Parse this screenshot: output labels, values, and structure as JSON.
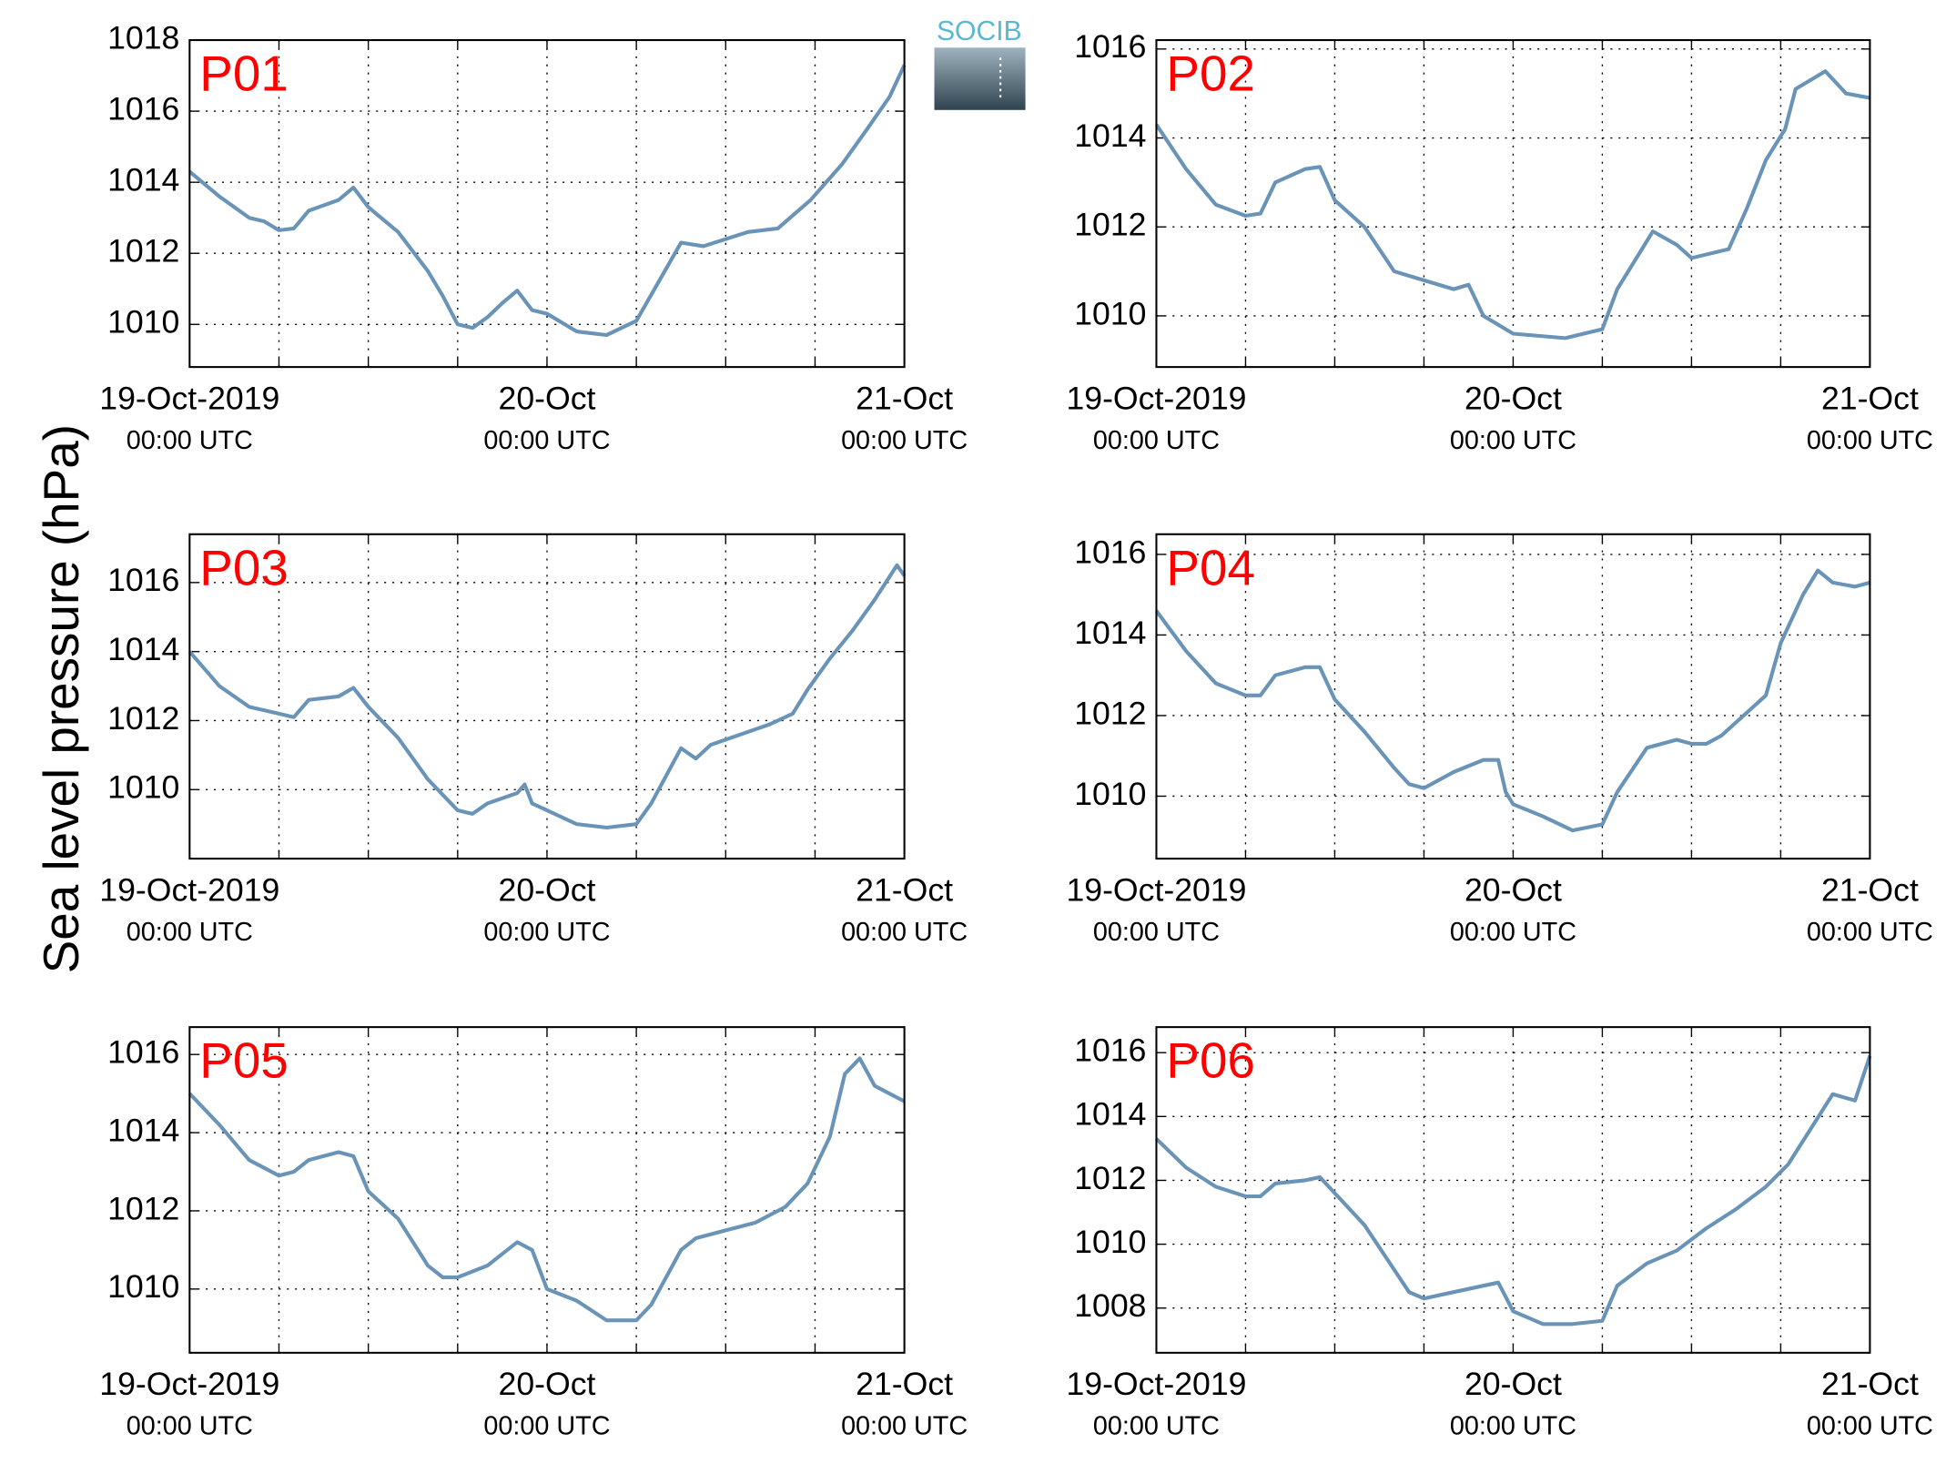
{
  "ylabel": "Sea level pressure (hPa)",
  "logo": "SOCIB",
  "chart_data": [
    {
      "type": "line",
      "title": "P01",
      "title_color": "#ff0000",
      "color": "#6a93b8",
      "grid": true,
      "xlim": [
        0,
        48
      ],
      "ylim": [
        1008.8,
        1018
      ],
      "yticks": [
        1010,
        1012,
        1014,
        1016,
        1018
      ],
      "xticks": [
        {
          "value": 0,
          "label": [
            "19-Oct-2019",
            "00:00 UTC"
          ]
        },
        {
          "value": 6,
          "label": null
        },
        {
          "value": 12,
          "label": null
        },
        {
          "value": 18,
          "label": null
        },
        {
          "value": 24,
          "label": [
            "20-Oct",
            "00:00 UTC"
          ]
        },
        {
          "value": 30,
          "label": null
        },
        {
          "value": 36,
          "label": null
        },
        {
          "value": 42,
          "label": null
        },
        {
          "value": 48,
          "label": [
            "21-Oct",
            "00:00 UTC"
          ]
        }
      ],
      "x": [
        0,
        2,
        4,
        5,
        6,
        7,
        8,
        10,
        11,
        12,
        14,
        16,
        17,
        18,
        19,
        20,
        21,
        22,
        23,
        24,
        26,
        28,
        30,
        31.5,
        33,
        34.5,
        37.5,
        39.5,
        41.7,
        43.8,
        45.5,
        47,
        48
      ],
      "values": [
        1014.3,
        1013.6,
        1013.0,
        1012.9,
        1012.65,
        1012.7,
        1013.2,
        1013.5,
        1013.85,
        1013.3,
        1012.6,
        1011.5,
        1010.8,
        1010.0,
        1009.9,
        1010.2,
        1010.6,
        1010.95,
        1010.4,
        1010.3,
        1009.8,
        1009.7,
        1010.1,
        1011.2,
        1012.3,
        1012.2,
        1012.6,
        1012.7,
        1013.5,
        1014.5,
        1015.5,
        1016.4,
        1017.3
      ]
    },
    {
      "type": "line",
      "title": "P02",
      "title_color": "#ff0000",
      "color": "#6a93b8",
      "grid": true,
      "xlim": [
        0,
        48
      ],
      "ylim": [
        1008.85,
        1016.2
      ],
      "yticks": [
        1010,
        1012,
        1014,
        1016
      ],
      "xticks": [
        {
          "value": 0,
          "label": [
            "19-Oct-2019",
            "00:00 UTC"
          ]
        },
        {
          "value": 6,
          "label": null
        },
        {
          "value": 12,
          "label": null
        },
        {
          "value": 18,
          "label": null
        },
        {
          "value": 24,
          "label": [
            "20-Oct",
            "00:00 UTC"
          ]
        },
        {
          "value": 30,
          "label": null
        },
        {
          "value": 36,
          "label": null
        },
        {
          "value": 42,
          "label": null
        },
        {
          "value": 48,
          "label": [
            "21-Oct",
            "00:00 UTC"
          ]
        }
      ],
      "x": [
        0,
        2,
        4,
        6,
        7,
        8,
        10,
        11,
        12,
        14,
        16,
        18,
        20,
        21,
        22,
        24,
        27.5,
        30,
        31,
        33.4,
        35,
        36,
        38.5,
        39.7,
        41,
        42.3,
        43,
        45,
        46.4,
        48
      ],
      "values": [
        1014.3,
        1013.3,
        1012.5,
        1012.25,
        1012.3,
        1013.0,
        1013.3,
        1013.35,
        1012.6,
        1012.0,
        1011.0,
        1010.8,
        1010.6,
        1010.7,
        1010.0,
        1009.6,
        1009.5,
        1009.7,
        1010.6,
        1011.9,
        1011.6,
        1011.3,
        1011.5,
        1012.4,
        1013.5,
        1014.2,
        1015.1,
        1015.5,
        1015.0,
        1014.9
      ]
    },
    {
      "type": "line",
      "title": "P03",
      "title_color": "#ff0000",
      "color": "#6a93b8",
      "grid": true,
      "xlim": [
        0,
        48
      ],
      "ylim": [
        1008,
        1017.4
      ],
      "yticks": [
        1010,
        1012,
        1014,
        1016
      ],
      "xticks": [
        {
          "value": 0,
          "label": [
            "19-Oct-2019",
            "00:00 UTC"
          ]
        },
        {
          "value": 6,
          "label": null
        },
        {
          "value": 12,
          "label": null
        },
        {
          "value": 18,
          "label": null
        },
        {
          "value": 24,
          "label": [
            "20-Oct",
            "00:00 UTC"
          ]
        },
        {
          "value": 30,
          "label": null
        },
        {
          "value": 36,
          "label": null
        },
        {
          "value": 42,
          "label": null
        },
        {
          "value": 48,
          "label": [
            "21-Oct",
            "00:00 UTC"
          ]
        }
      ],
      "x": [
        0,
        2,
        4,
        6,
        7,
        8,
        10,
        11,
        12,
        14,
        16,
        18,
        19,
        20,
        22,
        22.5,
        23,
        24,
        26,
        28,
        30,
        31,
        32,
        33,
        34,
        35,
        37,
        39,
        40.5,
        41.5,
        43,
        44.5,
        46,
        47.5,
        48
      ],
      "values": [
        1014.0,
        1013.0,
        1012.4,
        1012.2,
        1012.1,
        1012.6,
        1012.7,
        1012.95,
        1012.4,
        1011.5,
        1010.3,
        1009.4,
        1009.3,
        1009.6,
        1009.9,
        1010.15,
        1009.6,
        1009.4,
        1009.0,
        1008.9,
        1009.0,
        1009.6,
        1010.4,
        1011.2,
        1010.9,
        1011.3,
        1011.6,
        1011.9,
        1012.2,
        1012.9,
        1013.8,
        1014.6,
        1015.5,
        1016.5,
        1016.2
      ]
    },
    {
      "type": "line",
      "title": "P04",
      "title_color": "#ff0000",
      "color": "#6a93b8",
      "grid": true,
      "xlim": [
        0,
        48
      ],
      "ylim": [
        1008.45,
        1016.5
      ],
      "yticks": [
        1010,
        1012,
        1014,
        1016
      ],
      "xticks": [
        {
          "value": 0,
          "label": [
            "19-Oct-2019",
            "00:00 UTC"
          ]
        },
        {
          "value": 6,
          "label": null
        },
        {
          "value": 12,
          "label": null
        },
        {
          "value": 18,
          "label": null
        },
        {
          "value": 24,
          "label": [
            "20-Oct",
            "00:00 UTC"
          ]
        },
        {
          "value": 30,
          "label": null
        },
        {
          "value": 36,
          "label": null
        },
        {
          "value": 42,
          "label": null
        },
        {
          "value": 48,
          "label": [
            "21-Oct",
            "00:00 UTC"
          ]
        }
      ],
      "x": [
        0,
        2,
        4,
        6,
        7,
        8,
        10,
        11,
        12,
        14,
        16,
        17,
        18,
        20,
        22,
        23,
        23.5,
        24,
        26,
        28,
        30,
        31,
        33,
        35,
        36,
        37,
        38,
        39.5,
        41,
        42,
        43.5,
        44.5,
        45.5,
        47,
        48
      ],
      "values": [
        1014.6,
        1013.6,
        1012.8,
        1012.5,
        1012.5,
        1013.0,
        1013.2,
        1013.2,
        1012.4,
        1011.6,
        1010.7,
        1010.3,
        1010.2,
        1010.6,
        1010.9,
        1010.9,
        1010.1,
        1009.8,
        1009.5,
        1009.15,
        1009.3,
        1010.1,
        1011.2,
        1011.4,
        1011.3,
        1011.3,
        1011.5,
        1012.0,
        1012.5,
        1013.8,
        1015.0,
        1015.6,
        1015.3,
        1015.2,
        1015.3
      ]
    },
    {
      "type": "line",
      "title": "P05",
      "title_color": "#ff0000",
      "color": "#6a93b8",
      "grid": true,
      "xlim": [
        0,
        48
      ],
      "ylim": [
        1008.37,
        1016.7
      ],
      "yticks": [
        1010,
        1012,
        1014,
        1016
      ],
      "xticks": [
        {
          "value": 0,
          "label": [
            "19-Oct-2019",
            "00:00 UTC"
          ]
        },
        {
          "value": 6,
          "label": null
        },
        {
          "value": 12,
          "label": null
        },
        {
          "value": 18,
          "label": null
        },
        {
          "value": 24,
          "label": [
            "20-Oct",
            "00:00 UTC"
          ]
        },
        {
          "value": 30,
          "label": null
        },
        {
          "value": 36,
          "label": null
        },
        {
          "value": 42,
          "label": null
        },
        {
          "value": 48,
          "label": [
            "21-Oct",
            "00:00 UTC"
          ]
        }
      ],
      "x": [
        0,
        2,
        4,
        6,
        7,
        8,
        10,
        11,
        12,
        14,
        16,
        17,
        18,
        20,
        22,
        23,
        24,
        26,
        28,
        30,
        31,
        33,
        34,
        36,
        38,
        40,
        41.5,
        43,
        44,
        45,
        46,
        47,
        48
      ],
      "values": [
        1015.0,
        1014.2,
        1013.3,
        1012.9,
        1013.0,
        1013.3,
        1013.5,
        1013.4,
        1012.5,
        1011.8,
        1010.6,
        1010.3,
        1010.3,
        1010.6,
        1011.2,
        1011.0,
        1010.0,
        1009.7,
        1009.2,
        1009.2,
        1009.6,
        1011.0,
        1011.3,
        1011.5,
        1011.7,
        1012.1,
        1012.7,
        1013.9,
        1015.5,
        1015.9,
        1015.2,
        1015.0,
        1014.8
      ]
    },
    {
      "type": "line",
      "title": "P06",
      "title_color": "#ff0000",
      "color": "#6a93b8",
      "grid": true,
      "xlim": [
        0,
        48
      ],
      "ylim": [
        1006.6,
        1016.8
      ],
      "yticks": [
        1008,
        1010,
        1012,
        1014,
        1016
      ],
      "xticks": [
        {
          "value": 0,
          "label": [
            "19-Oct-2019",
            "00:00 UTC"
          ]
        },
        {
          "value": 6,
          "label": null
        },
        {
          "value": 12,
          "label": null
        },
        {
          "value": 18,
          "label": null
        },
        {
          "value": 24,
          "label": [
            "20-Oct",
            "00:00 UTC"
          ]
        },
        {
          "value": 30,
          "label": null
        },
        {
          "value": 36,
          "label": null
        },
        {
          "value": 42,
          "label": null
        },
        {
          "value": 48,
          "label": [
            "21-Oct",
            "00:00 UTC"
          ]
        }
      ],
      "x": [
        0,
        2,
        4,
        6,
        7,
        8,
        10,
        11,
        12,
        14,
        16,
        17,
        18,
        20,
        22,
        23,
        24,
        26,
        28,
        30,
        31,
        33,
        35,
        37,
        39,
        41,
        42.5,
        44,
        45.5,
        47,
        48
      ],
      "values": [
        1013.3,
        1012.4,
        1011.8,
        1011.5,
        1011.5,
        1011.9,
        1012.0,
        1012.1,
        1011.6,
        1010.6,
        1009.2,
        1008.5,
        1008.3,
        1008.5,
        1008.7,
        1008.8,
        1007.9,
        1007.5,
        1007.5,
        1007.6,
        1008.7,
        1009.4,
        1009.8,
        1010.5,
        1011.1,
        1011.8,
        1012.5,
        1013.6,
        1014.7,
        1014.5,
        1015.9
      ]
    }
  ]
}
